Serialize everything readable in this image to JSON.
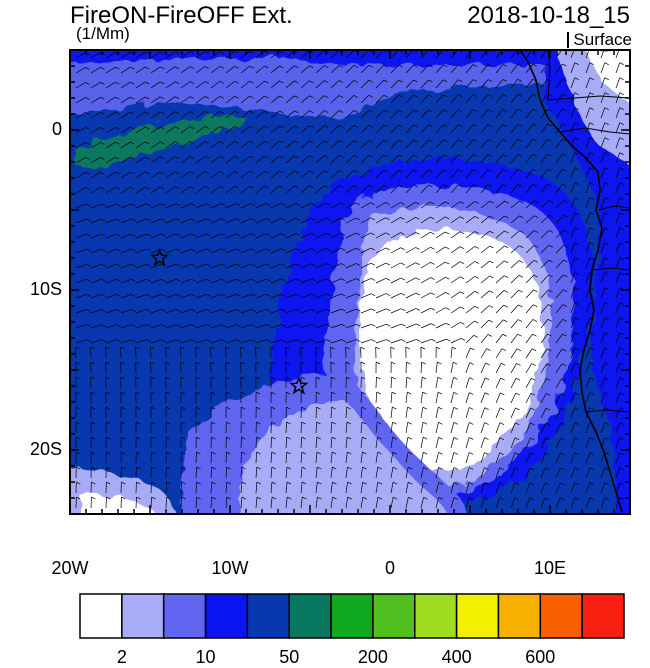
{
  "header": {
    "title": "FireON-FireOFF Ext.",
    "units": "(1/Mm)",
    "datetime": "2018-10-18_15",
    "level": "Surface"
  },
  "axes": {
    "lat_labels": [
      "0",
      "10S",
      "20S"
    ],
    "lat_values": [
      0,
      -10,
      -20
    ],
    "lon_labels": [
      "20W",
      "10W",
      "0",
      "10E"
    ],
    "lon_values": [
      -20,
      -10,
      0,
      10
    ],
    "lon_range": [
      -20,
      15
    ],
    "lat_range": [
      -24,
      5
    ]
  },
  "markers": [
    {
      "name": "site-star",
      "lon": -14.4,
      "lat": -8
    },
    {
      "name": "site-star",
      "lon": -5.7,
      "lat": -16
    }
  ],
  "colorbar": {
    "colors": [
      "#ffffff",
      "#a8acf6",
      "#6066f2",
      "#0a14f0",
      "#0838b0",
      "#087860",
      "#10a820",
      "#50c020",
      "#a0dc20",
      "#f0f000",
      "#f8b000",
      "#f86000",
      "#f82010"
    ],
    "tick_labels": [
      "2",
      "10",
      "50",
      "200",
      "400",
      "600"
    ]
  }
}
